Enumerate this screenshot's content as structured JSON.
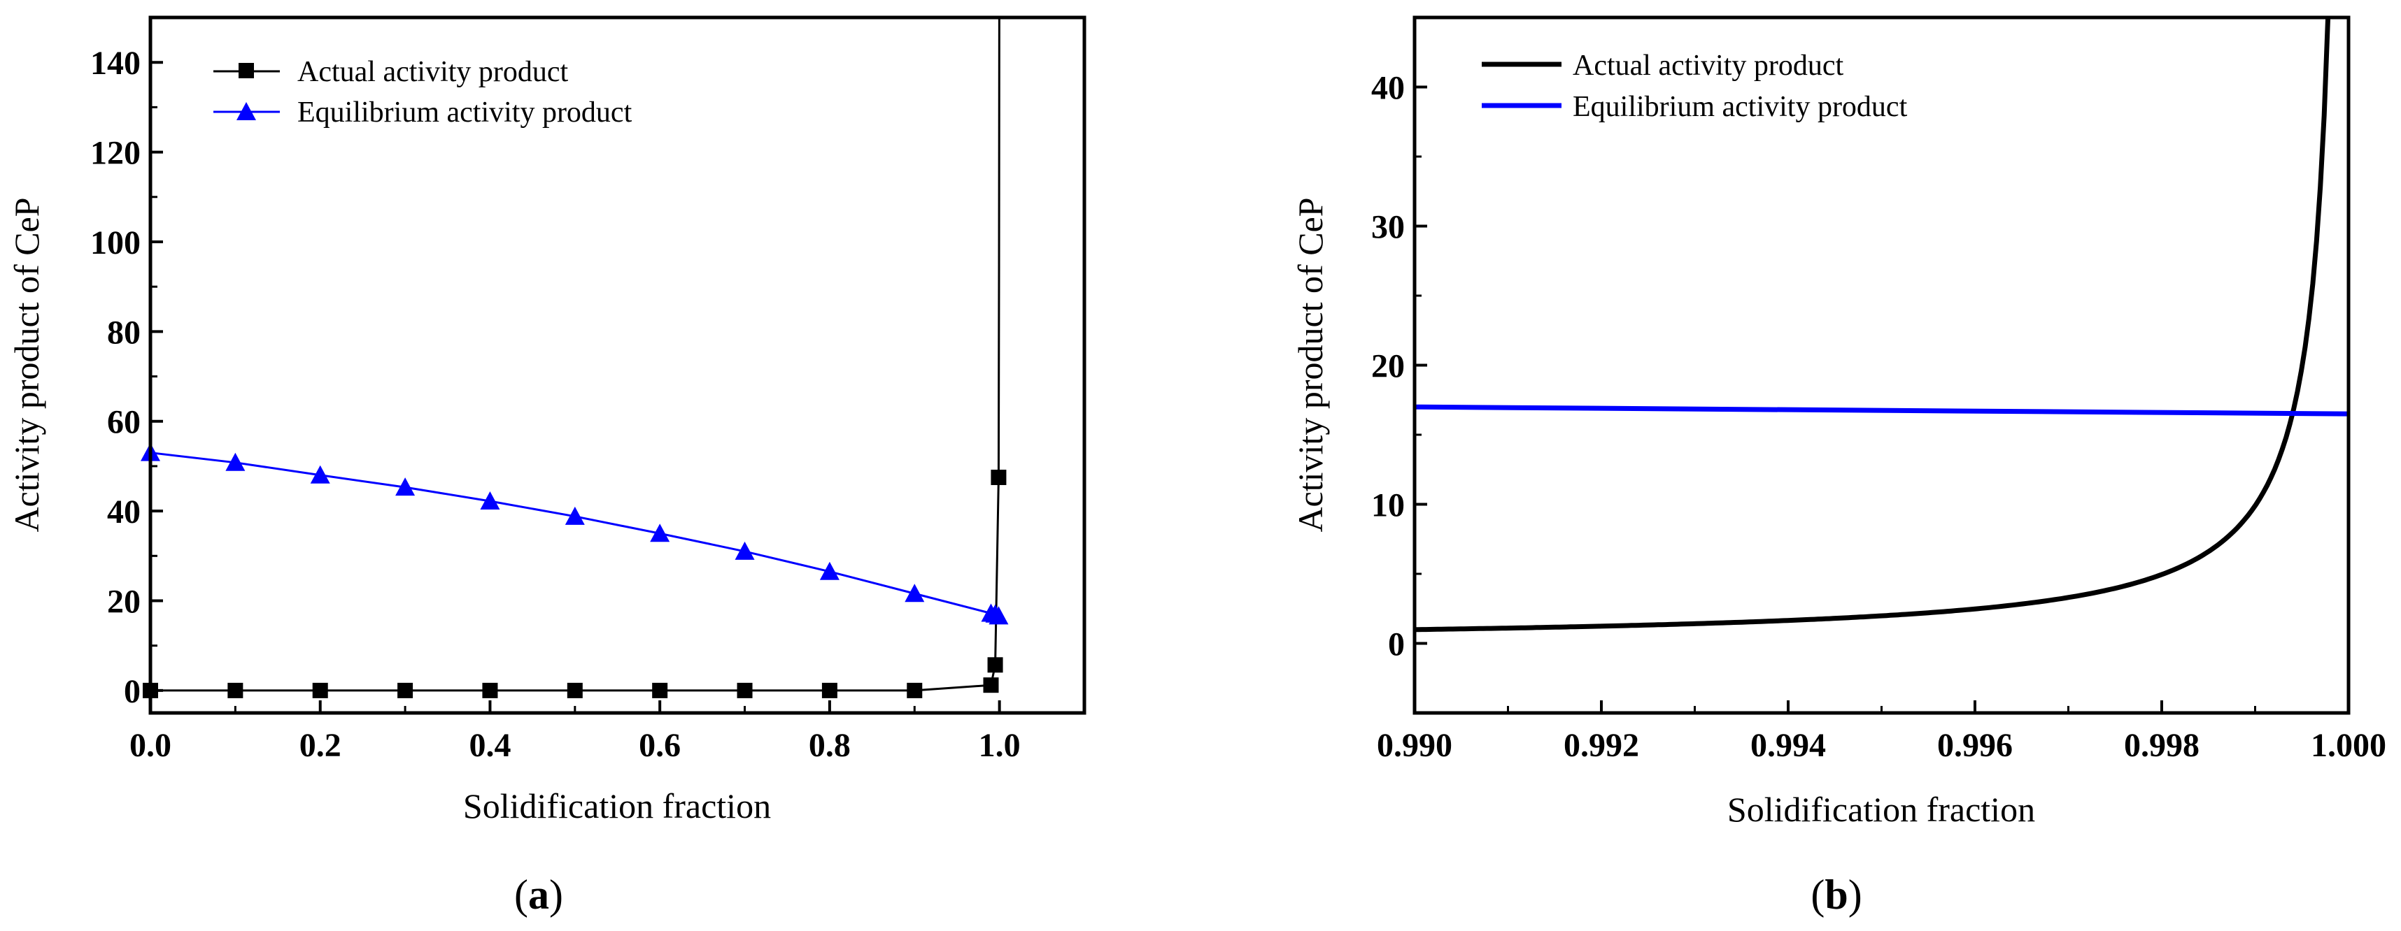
{
  "chart_data": [
    {
      "panel": "(a)",
      "panel_label_open": "(",
      "panel_label_letter": "a",
      "panel_label_close": ")",
      "type": "line",
      "title": "",
      "xlabel": "Solidification fraction",
      "ylabel": "Activity product of CeP",
      "xlim": [
        0,
        1.1
      ],
      "ylim": [
        -5,
        150
      ],
      "xticks": [
        0,
        0.2,
        0.4,
        0.6,
        0.8,
        1.0
      ],
      "xtick_labels": [
        "0.0",
        "0.2",
        "0.4",
        "0.6",
        "0.8",
        "1.0"
      ],
      "yticks": [
        0,
        20,
        40,
        60,
        80,
        100,
        120,
        140
      ],
      "ytick_labels": [
        "0",
        "20",
        "40",
        "60",
        "80",
        "100",
        "120",
        "140"
      ],
      "legend_position": "top-left",
      "series": [
        {
          "name": "Actual activity product",
          "color": "#000000",
          "marker": "square",
          "x": [
            0,
            0.1,
            0.2,
            0.3,
            0.4,
            0.5,
            0.6,
            0.7,
            0.8,
            0.9,
            0.99,
            0.995,
            0.999
          ],
          "y": [
            0,
            0,
            0,
            0,
            0,
            0,
            0,
            0,
            0,
            0,
            1.2,
            5.7,
            47.5
          ],
          "line_extra": [
            [
              0.9995,
              95
            ],
            [
              0.9998,
              150
            ]
          ]
        },
        {
          "name": "Equilibrium activity product",
          "color": "#0000ff",
          "marker": "triangle",
          "x": [
            0,
            0.1,
            0.2,
            0.3,
            0.4,
            0.5,
            0.6,
            0.7,
            0.8,
            0.9,
            0.99,
            0.995,
            0.999
          ],
          "y": [
            53,
            50.8,
            48,
            45.3,
            42.2,
            38.8,
            35,
            31,
            26.5,
            21.6,
            17.2,
            17.0,
            16.6
          ]
        }
      ]
    },
    {
      "panel": "(b)",
      "panel_label_open": "(",
      "panel_label_letter": "b",
      "panel_label_close": ")",
      "type": "line",
      "title": "",
      "xlabel": "Solidification fraction",
      "ylabel": "Activity product of CeP",
      "xlim": [
        0.99,
        1.0
      ],
      "ylim": [
        -5,
        45
      ],
      "xticks": [
        0.99,
        0.992,
        0.994,
        0.996,
        0.998,
        1.0
      ],
      "xtick_labels": [
        "0.990",
        "0.992",
        "0.994",
        "0.996",
        "0.998",
        "1.000"
      ],
      "yticks": [
        0,
        10,
        20,
        30,
        40
      ],
      "ytick_labels": [
        "0",
        "10",
        "20",
        "30",
        "40"
      ],
      "legend_position": "top-left",
      "series": [
        {
          "name": "Actual activity product",
          "color": "#000000",
          "marker": "none",
          "model": "0.0099/(1-x)",
          "x_range": [
            0.99,
            0.99978
          ]
        },
        {
          "name": "Equilibrium activity product",
          "color": "#0000ff",
          "marker": "none",
          "x": [
            0.99,
            1.0
          ],
          "y": [
            17.0,
            16.5
          ]
        }
      ]
    }
  ]
}
